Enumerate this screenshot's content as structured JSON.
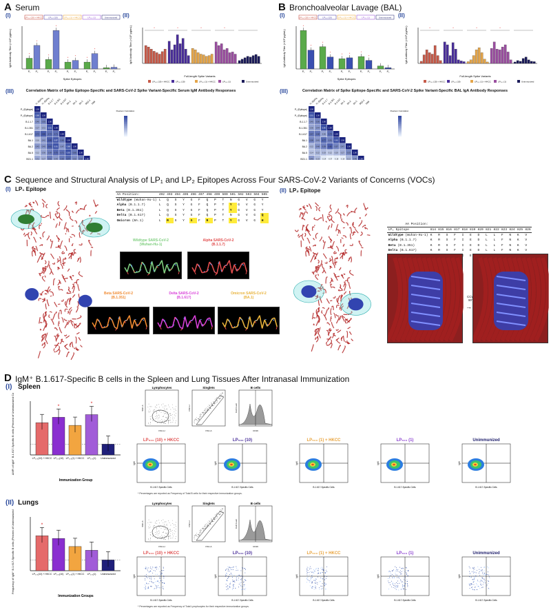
{
  "panelA": {
    "letter": "A",
    "title": "Serum",
    "i": {
      "label": "(I)",
      "ylabel": "IgM Antibody Titer (×10³ pg/mL)",
      "xlabel": "Spike Epitopes",
      "legend": [
        "LP₅₀₀ (10) + HKCC",
        "LP₅₀₀ (10)",
        "LP₅₀₀ (1) + HKCC",
        "LP₅₀₀ (1)",
        "Unimmunized"
      ],
      "ticks": [
        "P₁",
        "P₂"
      ]
    },
    "ii": {
      "label": "(II)",
      "ylabel": "IgM Antibody Titer (×10³ pg/mL)",
      "xlabel": "Full-length Spike Variants"
    },
    "iii": {
      "label": "(III)",
      "title": "Correlation Matrix of Spike Epitope-Specific and SARS-CoV-2 Spike Variant-Specific Serum IgM Antibody Responses"
    }
  },
  "panelB": {
    "letter": "B",
    "title": "Bronchoalveolar Lavage (BAL)",
    "i": {
      "label": "(I)",
      "ylabel": "IgA Antibody Titer (×10³ pg/mL)",
      "xlabel": "Spike Epitopes"
    },
    "ii": {
      "label": "(II)",
      "ylabel": "IgA Antibody Titer (×10³ pg/mL)",
      "xlabel": "Full-length Spike Variants"
    },
    "iii": {
      "label": "(III)",
      "title": "Correlation Matrix of Spike Epitope-Specific and SARS-CoV-2 Spike Variant-Specific BAL IgA Antibody Responses"
    }
  },
  "corr_labels": [
    "P₁ (Epitope)",
    "P₂ (Epitope)",
    "B.1.1.7",
    "B.1.351",
    "B.1.617",
    "BA.1",
    "BA.2",
    "BA.5",
    "BQ1.1",
    "XBB"
  ],
  "corr_legend": "Pearson Correlation",
  "corrA": [
    [
      1
    ],
    [
      0.88,
      1
    ],
    [
      0.46,
      0.55,
      1
    ],
    [
      0.27,
      0.31,
      0.91,
      1
    ],
    [
      0.72,
      0.85,
      0.72,
      0.71,
      1
    ],
    [
      0.16,
      0.42,
      0.85,
      0.87,
      0.65,
      1
    ],
    [
      0.43,
      0.45,
      0.81,
      0.91,
      0.47,
      0.88,
      1
    ],
    [
      0.12,
      0.36,
      0.59,
      0.75,
      0.71,
      0.93,
      0.65,
      1
    ],
    [
      0.31,
      0.27,
      0.61,
      0.43,
      0.63,
      0.77,
      0.52,
      0.62,
      1
    ],
    [
      0.18,
      0.28,
      0.51,
      0.43,
      0.35,
      0.82,
      0.37,
      0.64,
      0.75,
      1
    ]
  ],
  "corrB": [
    [
      1
    ],
    [
      0.91,
      1
    ],
    [
      0.45,
      0.56,
      1
    ],
    [
      0.36,
      0.44,
      0.96,
      1
    ],
    [
      0.67,
      0.68,
      0.36,
      0.74,
      1
    ],
    [
      0.58,
      0.45,
      0.77,
      0.61,
      0.92,
      1
    ],
    [
      0.22,
      0.48,
      0.59,
      0.82,
      0.57,
      0.47,
      1
    ],
    [
      0.14,
      0.22,
      0.19,
      0.12,
      0.19,
      0.27,
      0.53,
      1
    ],
    [
      0.45,
      0.19,
      -0.14,
      -0.37,
      -0.18,
      -0.18,
      0.21,
      0.46,
      1
    ],
    [
      0.21,
      0.08,
      0.23,
      -0.03,
      0.14,
      -0.12,
      0.37,
      0.18,
      0.24,
      1
    ]
  ],
  "panelC": {
    "letter": "C",
    "title": "Sequence and Structural Analysis of LP₁ and LP₂ Epitopes Across Four SARS-CoV-2 Variants of Concerns (VOCs)",
    "i": {
      "label": "(I)",
      "name": "LP₁ Epitope"
    },
    "ii": {
      "label": "(II)",
      "name": "LP₂ Epitope"
    },
    "lp1": {
      "pos_label": "AA Position:",
      "positions": [
        "492",
        "493",
        "494",
        "495",
        "496",
        "497",
        "498",
        "499",
        "500",
        "501",
        "502",
        "503",
        "504",
        "505"
      ],
      "rows": [
        {
          "name": "Wildtype",
          "sub": "(Wuhan-Hu-1)",
          "seq": [
            "L",
            "Q",
            "S",
            "Y",
            "G",
            "F",
            "Q",
            "P",
            "T",
            "N",
            "G",
            "V",
            "G",
            "Y"
          ]
        },
        {
          "name": "Alpha",
          "sub": "(B.1.1.7)",
          "seq": [
            "L",
            "Q",
            "S",
            "Y",
            "G",
            "F",
            "Q",
            "P",
            "T",
            "Y",
            "G",
            "V",
            "G",
            "Y"
          ]
        },
        {
          "name": "Beta",
          "sub": "(B.1.351)",
          "seq": [
            "L",
            "Q",
            "S",
            "Y",
            "G",
            "F",
            "Q",
            "P",
            "T",
            "Y",
            "G",
            "V",
            "G",
            "Y"
          ]
        },
        {
          "name": "Delta",
          "sub": "(B.1.617)",
          "seq": [
            "L",
            "Q",
            "S",
            "Y",
            "G",
            "F",
            "Q",
            "P",
            "T",
            "N",
            "G",
            "V",
            "G",
            "Q"
          ]
        },
        {
          "name": "Omicron",
          "sub": "(BA.1)",
          "seq": [
            "L",
            "R",
            "S",
            "Y",
            "S",
            "F",
            "R",
            "P",
            "T",
            "Y",
            "G",
            "V",
            "G",
            "H"
          ]
        }
      ]
    },
    "lp2": {
      "pos_label": "AA Position:",
      "col_label": "LP₂ Epitope",
      "positions": [
        "814",
        "815",
        "816",
        "817",
        "818",
        "819",
        "820",
        "821",
        "822",
        "823",
        "824",
        "825",
        "826"
      ],
      "rows": [
        {
          "name": "Wildtype",
          "sub": "(Wuhan-Hu-1)",
          "seq": [
            "K",
            "R",
            "S",
            "F",
            "I",
            "E",
            "D",
            "L",
            "L",
            "F",
            "N",
            "K",
            "V"
          ]
        },
        {
          "name": "Alpha",
          "sub": "(B.1.1.7)",
          "seq": [
            "K",
            "R",
            "S",
            "F",
            "I",
            "E",
            "D",
            "L",
            "L",
            "F",
            "N",
            "K",
            "V"
          ]
        },
        {
          "name": "Beta",
          "sub": "(B.1.351)",
          "seq": [
            "K",
            "R",
            "S",
            "F",
            "I",
            "E",
            "D",
            "L",
            "L",
            "F",
            "N",
            "K",
            "V"
          ]
        },
        {
          "name": "Delta",
          "sub": "(B.1.617)",
          "seq": [
            "K",
            "R",
            "S",
            "F",
            "I",
            "E",
            "D",
            "L",
            "L",
            "F",
            "N",
            "K",
            "V"
          ]
        },
        {
          "name": "Omicron",
          "sub": "(BA.1)",
          "seq": [
            "K",
            "R",
            "S",
            "F",
            "I",
            "E",
            "D",
            "L",
            "L",
            "F",
            "N",
            "K",
            "V"
          ]
        }
      ]
    },
    "captions": {
      "wt": "Wildtype SARS-CoV-2\n(Wuhan-Hu-1)",
      "alpha": "Alpha SARS-CoV-2\n(B.1.1.7)",
      "beta": "Beta SARS-CoV-2\n(B.1.351)",
      "delta": "Delta SARS-CoV-2\n(B.1.617)",
      "omicron": "Omicron SARS-CoV-2\n(BA.1)"
    },
    "rotation": "CCW\n90°",
    "colors": {
      "wt": "#7fce7f",
      "alpha": "#e24d4d",
      "beta": "#f08a30",
      "delta": "#d83fd8",
      "omicron": "#e8b23a"
    }
  },
  "panelD": {
    "letter": "D",
    "title": "IgM⁺ B.1.617-Specific B cells in the Spleen and Lung Tissues After Intranasal Immunization",
    "spleen": {
      "label": "(I)",
      "name": "Spleen",
      "ylabel": "ΔMFI of IgM⁺ B.1.617-Specific B cells (Percent of Unimmunized Control)",
      "xlabel": "Immunization Group",
      "categories": [
        "LP₅₀₀(10) + HKCC",
        "LP₅₀₀(10)",
        "LP₅₀₀(1) + HKCC",
        "LP₅₀₀(1)",
        "Unimmunized"
      ]
    },
    "lungs": {
      "label": "(II)",
      "name": "Lungs",
      "ylabel": "Frequency of IgM⁺ B.1.617-Specific B cells (Percent of Unimmunized Control)",
      "xlabel": "Immunization Groups",
      "categories": [
        "LP₅₀₀(10) + HKCC",
        "LP₅₀₀(10)",
        "LP₅₀₀(1) + HKCC",
        "LP₅₀₀(1)",
        "Unimmunized"
      ]
    },
    "gates": {
      "lymph": "Lymphocytes",
      "single": "Singlets",
      "bcells": "B cells"
    },
    "groups": [
      "LP₅₀₀ (10) + HKCC",
      "LP₅₀₀ (10)",
      "LP₅₀₀ (1) + HKCC",
      "LP₅₀₀ (1)",
      "Unimmunized"
    ],
    "axes": {
      "fsch": "FSC-H",
      "fsca": "FSC-A",
      "ssca": "SSC-A",
      "cd19": "CD19",
      "count": "Cell Count",
      "igm": "IgM",
      "spec": "B.1.617-Specific Cells"
    },
    "foot_spleen": "* Percentages are reported as Frequency of Total B cells for their respective immunization groups.",
    "foot_lungs": "* Percentages are reported as Frequency of Total Lymphocytes for their respective immunization groups."
  }
}
